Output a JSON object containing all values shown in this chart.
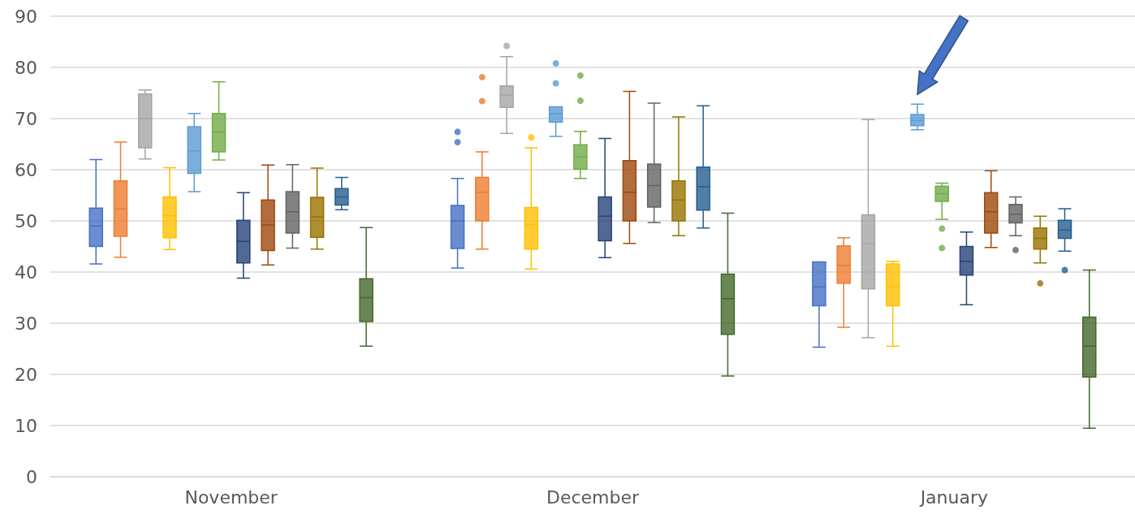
{
  "chart_data": {
    "type": "box",
    "categories": [
      "November",
      "December",
      "January"
    ],
    "ylim": [
      0,
      90
    ],
    "yticks": [
      0,
      10,
      20,
      30,
      40,
      50,
      60,
      70,
      80,
      90
    ],
    "grid": "y",
    "series": [
      {
        "color": "#4472c4",
        "boxes": [
          {
            "low": 41.6,
            "q1": 45,
            "median": 49,
            "q3": 52.5,
            "high": 62
          },
          {
            "low": 40.8,
            "q1": 44.6,
            "median": 50,
            "q3": 53,
            "high": 58.3,
            "outliers": [
              67.4,
              65.4
            ]
          },
          {
            "low": 25.3,
            "q1": 33.4,
            "median": 37.1,
            "q3": 42,
            "high": 42
          }
        ]
      },
      {
        "color": "#ed7d31",
        "boxes": [
          {
            "low": 42.9,
            "q1": 47,
            "median": 52.4,
            "q3": 57.8,
            "high": 65.4
          },
          {
            "low": 44.5,
            "q1": 50,
            "median": 55.6,
            "q3": 58.5,
            "high": 63.5,
            "outliers": [
              78.1,
              73.4
            ]
          },
          {
            "low": 29.2,
            "q1": 37.8,
            "median": 41.3,
            "q3": 45.1,
            "high": 46.7
          }
        ]
      },
      {
        "color": "#a5a5a5",
        "boxes": [
          {
            "low": 62.1,
            "q1": 64.3,
            "median": 70,
            "q3": 74.8,
            "high": 75.6
          },
          {
            "low": 67.1,
            "q1": 72.2,
            "median": 74.6,
            "q3": 76.4,
            "high": 82.1,
            "outliers": [
              84.2
            ]
          },
          {
            "low": 27.2,
            "q1": 36.7,
            "median": 45.5,
            "q3": 51.2,
            "high": 69.8
          }
        ]
      },
      {
        "color": "#ffc000",
        "boxes": [
          {
            "low": 44.4,
            "q1": 46.7,
            "median": 51,
            "q3": 54.7,
            "high": 60.4
          },
          {
            "low": 40.6,
            "q1": 44.5,
            "median": 49.3,
            "q3": 52.6,
            "high": 64.3,
            "outliers": [
              66.3
            ]
          },
          {
            "low": 25.5,
            "q1": 33.4,
            "median": 37.1,
            "q3": 41.6,
            "high": 42.1
          }
        ]
      },
      {
        "color": "#5b9bd5",
        "boxes": [
          {
            "low": 55.7,
            "q1": 59.3,
            "median": 63.7,
            "q3": 68.4,
            "high": 71
          },
          {
            "low": 66.5,
            "q1": 69.3,
            "median": 70.9,
            "q3": 72.3,
            "high": 72.3,
            "outliers": [
              80.8,
              76.9
            ]
          },
          {
            "low": 67.8,
            "q1": 68.6,
            "median": 69.6,
            "q3": 70.8,
            "high": 72.8
          }
        ]
      },
      {
        "color": "#70ad47",
        "boxes": [
          {
            "low": 61.9,
            "q1": 63.5,
            "median": 67.4,
            "q3": 71,
            "high": 77.2
          },
          {
            "low": 58.3,
            "q1": 60.1,
            "median": 62.5,
            "q3": 64.9,
            "high": 67.5,
            "outliers": [
              78.4,
              73.5
            ]
          },
          {
            "low": 50.3,
            "q1": 53.8,
            "median": 55.3,
            "q3": 56.8,
            "high": 57.4,
            "outliers": [
              48.5,
              44.7
            ]
          }
        ]
      },
      {
        "color": "#264478",
        "boxes": [
          {
            "low": 38.8,
            "q1": 41.8,
            "median": 46,
            "q3": 50.1,
            "high": 55.5
          },
          {
            "low": 42.8,
            "q1": 46.1,
            "median": 50.9,
            "q3": 54.7,
            "high": 66.1
          },
          {
            "low": 33.6,
            "q1": 39.4,
            "median": 42.1,
            "q3": 45,
            "high": 47.8
          }
        ]
      },
      {
        "color": "#9e480e",
        "boxes": [
          {
            "low": 41.4,
            "q1": 44.2,
            "median": 49.2,
            "q3": 54.1,
            "high": 60.9
          },
          {
            "low": 45.6,
            "q1": 50,
            "median": 55.6,
            "q3": 61.8,
            "high": 75.3
          },
          {
            "low": 44.8,
            "q1": 47.6,
            "median": 51.8,
            "q3": 55.5,
            "high": 59.8
          }
        ]
      },
      {
        "color": "#636363",
        "boxes": [
          {
            "low": 44.7,
            "q1": 47.6,
            "median": 51.8,
            "q3": 55.7,
            "high": 61
          },
          {
            "low": 49.7,
            "q1": 52.7,
            "median": 56.9,
            "q3": 61.1,
            "high": 73
          },
          {
            "low": 47.1,
            "q1": 49.6,
            "median": 51.3,
            "q3": 53.2,
            "high": 54.7,
            "outliers": [
              44.3
            ]
          }
        ]
      },
      {
        "color": "#997300",
        "boxes": [
          {
            "low": 44.5,
            "q1": 46.8,
            "median": 50.8,
            "q3": 54.6,
            "high": 60.3
          },
          {
            "low": 47.1,
            "q1": 50,
            "median": 54.1,
            "q3": 57.8,
            "high": 70.3
          },
          {
            "low": 41.8,
            "q1": 44.5,
            "median": 46.6,
            "q3": 48.6,
            "high": 50.9,
            "outliers": [
              37.8
            ]
          }
        ]
      },
      {
        "color": "#255e91",
        "boxes": [
          {
            "low": 52.2,
            "q1": 53.1,
            "median": 54.7,
            "q3": 56.3,
            "high": 58.5
          },
          {
            "low": 48.6,
            "q1": 52.1,
            "median": 56.7,
            "q3": 60.5,
            "high": 72.5
          },
          {
            "low": 44.1,
            "q1": 46.6,
            "median": 48.2,
            "q3": 50.1,
            "high": 52.4,
            "outliers": [
              40.4
            ]
          }
        ]
      },
      {
        "color": "#43682b",
        "boxes": [
          {
            "low": 25.5,
            "q1": 30.3,
            "median": 35,
            "q3": 38.7,
            "high": 48.7
          },
          {
            "low": 19.7,
            "q1": 27.8,
            "median": 34.8,
            "q3": 39.6,
            "high": 51.5
          },
          {
            "low": 9.5,
            "q1": 19.5,
            "median": 25.5,
            "q3": 31.2,
            "high": 40.4
          }
        ]
      }
    ]
  }
}
